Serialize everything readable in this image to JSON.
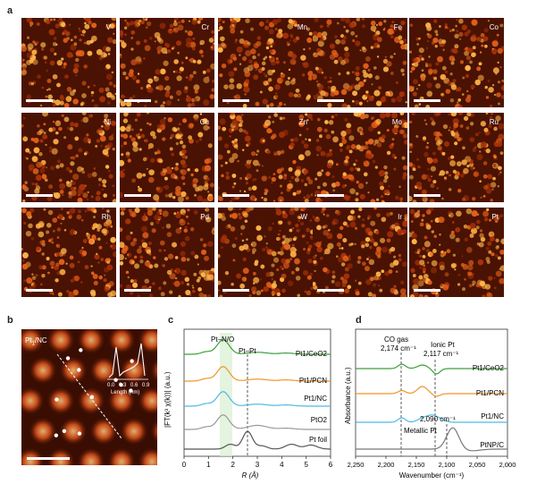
{
  "panels": {
    "a": "a",
    "b": "b",
    "c": "c",
    "d": "d"
  },
  "panel_a": {
    "elements": [
      "V",
      "Cr",
      "Mn",
      "Fe",
      "Co",
      "Ni",
      "Cu",
      "Zn",
      "Mo",
      "Ru",
      "Rh",
      "Pd",
      "W",
      "Ir",
      "Pt"
    ]
  },
  "panel_b": {
    "label": "Pt1/NC",
    "inset_ticks": [
      "0.0",
      "0.3",
      "0.6",
      "0.9"
    ],
    "inset_xlabel": "Length (nm)"
  },
  "panel_c": {
    "chart_data": {
      "type": "line",
      "xlabel": "R (Å)",
      "ylabel": "|FT(k³ χ(k))| (a.u.)",
      "xlim": [
        0,
        6
      ],
      "xticks": [
        "0",
        "1",
        "2",
        "3",
        "4",
        "5",
        "6"
      ],
      "annotations": [
        "Pt–N/O",
        "Pt–Pt"
      ],
      "series": [
        {
          "name": "Pt1/CeO2",
          "color": "#3aa03a",
          "peak_R": 1.6
        },
        {
          "name": "Pt1/PCN",
          "color": "#f0952a",
          "peak_R": 1.6
        },
        {
          "name": "Pt1/NC",
          "color": "#4fb8e6",
          "peak_R": 1.6
        },
        {
          "name": "PtO2",
          "color": "#999999",
          "peak_R": 1.6
        },
        {
          "name": "Pt foil",
          "color": "#555555",
          "peak_R": 2.6
        }
      ]
    }
  },
  "panel_d": {
    "chart_data": {
      "type": "line",
      "xlabel": "Wavenumber (cm⁻¹)",
      "ylabel": "Absorbance (a.u.)",
      "xlim": [
        2250,
        2000
      ],
      "xticks": [
        "2,250",
        "2,200",
        "2,150",
        "2,100",
        "2,050",
        "2,000"
      ],
      "annotations": [
        "CO gas",
        "2,174 cm⁻¹",
        "Ionic Pt",
        "2,117 cm⁻¹",
        "2,090 cm⁻¹",
        "Metallic Pt"
      ],
      "series": [
        {
          "name": "Pt1/CeO2",
          "color": "#3aa03a"
        },
        {
          "name": "Pt1/PCN",
          "color": "#f0952a"
        },
        {
          "name": "Pt1/NC",
          "color": "#4fb8e6"
        },
        {
          "name": "PtNP/C",
          "color": "#777777"
        }
      ]
    }
  }
}
